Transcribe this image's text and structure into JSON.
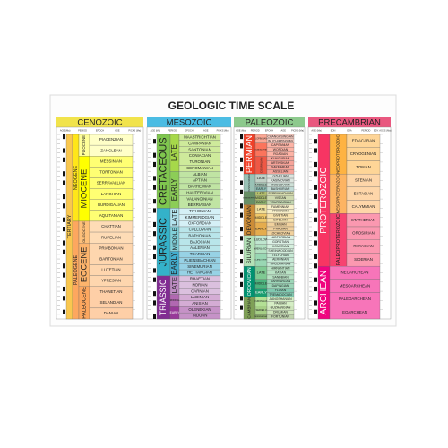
{
  "title": "GEOLOGIC TIME SCALE",
  "columns": [
    {
      "era": "CENOZOIC",
      "color": "#f1e34b",
      "headings": [
        "AGE (Ma)",
        "PERIOD",
        "EPOCH",
        "AGE",
        "PICKS (Ma)"
      ],
      "tree": [
        {
          "name": "TERTIARY",
          "color": "#f9c74f",
          "children": [
            {
              "name": "NEOGENE",
              "color": "#ffe619",
              "children": [
                {
                  "name": "PLIOCENE",
                  "color": "#ffff99",
                  "children": [
                    "PIACENZIAN",
                    "ZANCLEAN"
                  ]
                },
                {
                  "name": "MIOCENE",
                  "color": "#ffff00",
                  "children": [
                    "MESSINIAN",
                    "TORTONIAN",
                    "SERRAVALLIAN",
                    "LANGHIAN",
                    "BURDIGALIAN",
                    "AQUITANIAN"
                  ]
                }
              ]
            },
            {
              "name": "PALEOGENE",
              "color": "#fda75f",
              "children": [
                {
                  "name": "OLIGOCENE",
                  "color": "#fec07a",
                  "children": [
                    "CHATTIAN",
                    "RUPELIAN"
                  ]
                },
                {
                  "name": "EOCENE",
                  "color": "#fdb46c",
                  "children": [
                    "PRIABONIAN",
                    "BARTONIAN",
                    "LUTETIAN",
                    "YPRESIAN"
                  ]
                },
                {
                  "name": "PALEOCENE",
                  "color": "#fda75f",
                  "children": [
                    "THANETIAN",
                    "SELANDIAN",
                    "DANIAN"
                  ]
                }
              ]
            }
          ]
        }
      ]
    },
    {
      "era": "MESOZOIC",
      "color": "#4bbce3",
      "headings": [
        "AGE (Ma)",
        "PERIOD",
        "EPOCH",
        "AGE",
        "PICKS (Ma)"
      ],
      "tree": [
        {
          "name": "CRETACEOUS",
          "color": "#7fc64e",
          "children": [
            {
              "name": "LATE",
              "color": "#a6d84a",
              "children": [
                "MAASTRICHTIAN",
                "CAMPANIAN",
                "SANTONIAN",
                "CONIACIAN",
                "TURONIAN",
                "CENOMANIAN"
              ]
            },
            {
              "name": "EARLY",
              "color": "#8ccd57",
              "children": [
                "ALBIAN",
                "APTIAN",
                "BARREMIAN",
                "HAUTERIVIAN",
                "VALANGINIAN",
                "BERRIASIAN"
              ]
            }
          ]
        },
        {
          "name": "JURASSIC",
          "color": "#34b2c9",
          "children": [
            {
              "name": "LATE",
              "color": "#b3e3ee",
              "children": [
                "TITHONIAN",
                "KIMMERIDGIAN",
                "OXFORDIAN"
              ]
            },
            {
              "name": "MIDDLE",
              "color": "#80cfd8",
              "children": [
                "CALLOVIAN",
                "BATHONIAN",
                "BAJOCIAN",
                "AALENIAN"
              ]
            },
            {
              "name": "EARLY",
              "color": "#42aed0",
              "children": [
                "TOARCIAN",
                "PLIENSBACHIAN",
                "SINEMURIAN",
                "HETTANGIAN"
              ]
            }
          ]
        },
        {
          "name": "TRIASSIC",
          "color": "#812b92",
          "children": [
            {
              "name": "LATE",
              "color": "#bd8cc3",
              "children": [
                "RHAETIAN",
                "NORIAN",
                "CARNIAN"
              ]
            },
            {
              "name": "MIDDLE",
              "color": "#b168b1",
              "children": [
                "LADINIAN",
                "ANISIAN"
              ]
            },
            {
              "name": "EARLY",
              "color": "#983999",
              "children": [
                "OLENEKIAN",
                "INDUAN"
              ]
            }
          ]
        }
      ]
    },
    {
      "era": "PALEOZOIC",
      "color": "#8cc98c",
      "headings": [
        "AGE (Ma)",
        "PERIOD",
        "EPOCH",
        "AGE",
        "PICKS (Ma)"
      ],
      "tree": [
        {
          "name": "PERMIAN",
          "color": "#f04028",
          "children": [
            {
              "name": "LOPINGIAN",
              "color": "#fba794",
              "children": [
                "CHANGHSINGIAN",
                "WUCHIAPINGIAN"
              ]
            },
            {
              "name": "GUADALUPIAN",
              "color": "#fb745c",
              "children": [
                "CAPITANIAN",
                "WORDIAN",
                "ROADIAN"
              ]
            },
            {
              "name": "CISURALIAN",
              "color": "#ef5845",
              "children": [
                "KUNGURIAN",
                "ARTINSKIAN",
                "SAKMARIAN",
                "ASSELIAN"
              ]
            }
          ]
        },
        {
          "name": "PENNSYLVANIAN",
          "color": "#99c2b5",
          "children": [
            {
              "name": "LATE",
              "color": "#bfd0c5",
              "children": [
                "GZHELIAN",
                "KASIMOVIAN"
              ]
            },
            {
              "name": "MIDDLE",
              "color": "#a6c7b7",
              "children": [
                "MOSCOVIAN"
              ]
            },
            {
              "name": "EARLY",
              "color": "#8cbeb4",
              "children": [
                "BASHKIRIAN"
              ]
            }
          ]
        },
        {
          "name": "MISSISSIPPIAN",
          "color": "#678f66",
          "children": [
            {
              "name": "LATE",
              "color": "#b3be6c",
              "children": [
                "SERPUKHOVIAN"
              ]
            },
            {
              "name": "MIDDLE",
              "color": "#a6b96c",
              "children": [
                "VISEAN"
              ]
            },
            {
              "name": "EARLY",
              "color": "#8cb06c",
              "children": [
                "TOURNAISIAN"
              ]
            }
          ]
        },
        {
          "name": "DEVONIAN",
          "color": "#cb8c37",
          "children": [
            {
              "name": "LATE",
              "color": "#f1e19d",
              "children": [
                "FAMENNIAN",
                "FRASNIAN"
              ]
            },
            {
              "name": "MIDDLE",
              "color": "#f1c868",
              "children": [
                "GIVETIAN",
                "EIFELIAN"
              ]
            },
            {
              "name": "EARLY",
              "color": "#e5ac4d",
              "children": [
                "EMSIAN",
                "PRAGIAN",
                "LOCHKOVIAN"
              ]
            }
          ]
        },
        {
          "name": "SILURIAN",
          "color": "#b3e1b6",
          "children": [
            {
              "name": "LUDLOW",
              "color": "#bfe6cf",
              "children": [
                "LUDFORDIAN",
                "GORSTIAN"
              ]
            },
            {
              "name": "WENLOCK",
              "color": "#b3e1c2",
              "children": [
                "HOMERIAN",
                "SHEINWOODIAN"
              ]
            },
            {
              "name": "LLANDOVERY",
              "color": "#99d7b3",
              "children": [
                "TELYCHIAN",
                "AERONIAN",
                "RHUDDANIAN"
              ]
            }
          ]
        },
        {
          "name": "ORDOVICIAN",
          "color": "#009270",
          "children": [
            {
              "name": "LATE",
              "color": "#7fca93",
              "children": [
                "HIRNANTIAN",
                "KATIAN",
                "SANDBIAN"
              ]
            },
            {
              "name": "MIDDLE",
              "color": "#4db47e",
              "children": [
                "DARRIWILIAN",
                "DAPINGIAN"
              ]
            },
            {
              "name": "EARLY",
              "color": "#1a9d6f",
              "children": [
                "FLOIAN",
                "TREMADOCIAN"
              ]
            }
          ]
        },
        {
          "name": "CAMBRIAN",
          "color": "#7fa056",
          "children": [
            {
              "name": "FURONGIAN",
              "color": "#b3e095",
              "children": [
                "JIANGSHANIAN",
                "PAIBIAN"
              ]
            },
            {
              "name": "SERIES 3",
              "color": "#a6cf86",
              "children": [
                "GUZHANGIAN",
                "DRUMIAN"
              ]
            },
            {
              "name": "TERRENEUVIAN",
              "color": "#8cb06c",
              "children": [
                "FORTUNIAN"
              ]
            }
          ]
        }
      ]
    },
    {
      "era": "PRECAMBRIAN",
      "color": "#e9587f",
      "headings": [
        "AGE (Ma)",
        "EON",
        "ERA",
        "PERIOD",
        "BDY. AGES (Ma)"
      ],
      "tree": [
        {
          "name": "PROTEROZOIC",
          "color": "#f73563",
          "children": [
            {
              "name": "NEOPROTEROZOIC",
              "color": "#feb342",
              "children": [
                "EDIACARAN",
                "CRYOGENIAN",
                "TONIAN"
              ]
            },
            {
              "name": "MESOPROTEROZOIC",
              "color": "#fdb462",
              "children": [
                "STENIAN",
                "ECTASIAN",
                "CALYMMIAN"
              ]
            },
            {
              "name": "PALEOPROTEROZOIC",
              "color": "#f74370",
              "children": [
                "STATHERIAN",
                "OROSIRIAN",
                "RHYACIAN",
                "SIDERIAN"
              ]
            }
          ]
        },
        {
          "name": "ARCHEAN",
          "color": "#f0047f",
          "children": [
            "NEOARCHEAN",
            "MESOARCHEAN",
            "PALEOARCHEAN",
            "EOARCHEAN"
          ]
        }
      ]
    }
  ]
}
